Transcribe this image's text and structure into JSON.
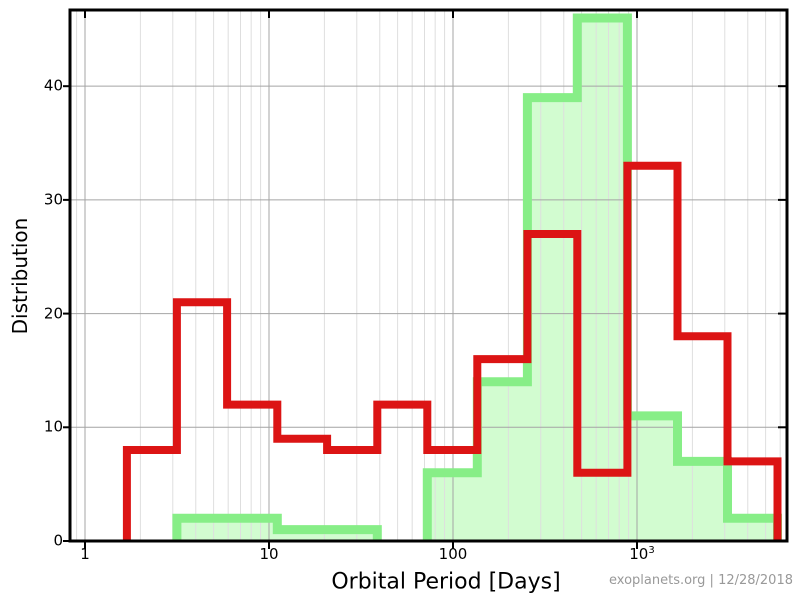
{
  "chart_data": {
    "type": "histogram",
    "title": "",
    "xlabel": "Orbital Period [Days]",
    "ylabel": "Distribution",
    "watermark": "exoplanets.org | 12/28/2018",
    "x_scale": "log",
    "x_range_days": [
      0.83,
      6500
    ],
    "y_range": [
      0,
      46.7
    ],
    "x_ticks": [
      {
        "value": 1,
        "label": "1"
      },
      {
        "value": 10,
        "label": "10"
      },
      {
        "value": 100,
        "label": "100"
      },
      {
        "value": 1000,
        "label": "10^3"
      }
    ],
    "y_ticks": [
      0,
      10,
      20,
      30,
      40
    ],
    "grid": {
      "vertical_minor_log": true,
      "vertical_major_decades": true,
      "horizontal_major": true,
      "legend": "none"
    },
    "bin_edges_days": [
      1.69,
      3.16,
      5.92,
      11.1,
      20.7,
      38.8,
      72.5,
      135.6,
      253.6,
      474,
      887,
      1659,
      3102,
      5800
    ],
    "series": [
      {
        "name": "green-filled-histogram",
        "stroke": "#87ee87",
        "fill": "#d2fcd0",
        "line_width": 9,
        "counts": [
          0,
          2,
          2,
          1,
          1,
          0,
          6,
          14,
          39,
          46,
          11,
          7,
          2
        ]
      },
      {
        "name": "red-outline-histogram",
        "stroke": "#dc1414",
        "fill": "none",
        "line_width": 8,
        "counts": [
          8,
          21,
          12,
          9,
          8,
          12,
          8,
          16,
          27,
          6,
          33,
          18,
          7
        ]
      }
    ],
    "colors": {
      "grid_minor": "#dedede",
      "grid_major": "#a4a4a4",
      "border": "#000000",
      "watermark": "#999999"
    }
  }
}
